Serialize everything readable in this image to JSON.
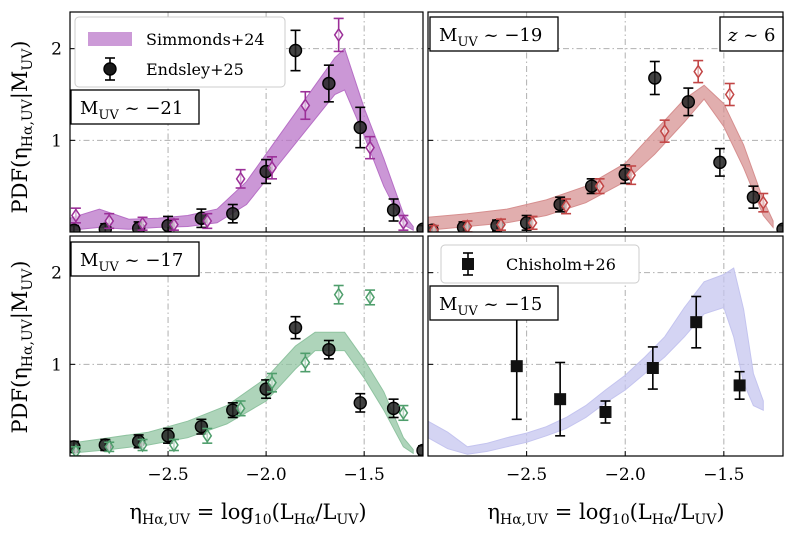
{
  "chart_data": {
    "type": "multi-panel",
    "xlim": [
      -3.0,
      -1.2
    ],
    "ylim": [
      0,
      2.4
    ],
    "xticks": [
      -2.5,
      -2.0,
      -1.5
    ],
    "yticks": [
      1,
      2
    ],
    "xtick_labels": [
      "−2.5",
      "−2.0",
      "−1.5"
    ],
    "ytick_labels": [
      "1",
      "2"
    ],
    "xlabel_main": "η",
    "xlabel_sub": "Hα,UV",
    "xlabel_eq": " = log",
    "xlabel_log_sub": "10",
    "xlabel_open": "(L",
    "xlabel_num_sub": "Hα",
    "xlabel_slash": "/L",
    "xlabel_den_sub": "UV",
    "xlabel_close": ")",
    "ylabel_pre": "PDF(η",
    "ylabel_sub1": "Hα,UV",
    "ylabel_mid": "|M",
    "ylabel_sub2": "UV",
    "ylabel_close": ")",
    "legend_top": [
      {
        "label": "Simmonds+24",
        "kind": "band",
        "color": "#b76fc6"
      },
      {
        "label": "Endsley+25",
        "kind": "circle",
        "color": "#000000"
      }
    ],
    "legend_bottom": [
      {
        "label": "Chisholm+26",
        "kind": "square",
        "color": "#000000"
      }
    ],
    "redshift_label_pre": "z",
    "redshift_label_mid": " ~ ",
    "redshift_label_val": "6",
    "panels": [
      {
        "name": "muv-21",
        "label_pre": "M",
        "label_sub": "UV",
        "label_val": " ~ −21",
        "band_color": "#b76fc6",
        "band": {
          "x": [
            -3.0,
            -2.85,
            -2.7,
            -2.55,
            -2.4,
            -2.25,
            -2.1,
            -1.95,
            -1.8,
            -1.65,
            -1.6,
            -1.5,
            -1.4,
            -1.3,
            -1.25
          ],
          "lower": [
            0.02,
            0.05,
            0.03,
            0.05,
            0.06,
            0.1,
            0.3,
            0.7,
            1.1,
            1.5,
            1.55,
            1.05,
            0.5,
            0.08,
            0.02
          ],
          "upper": [
            0.15,
            0.25,
            0.14,
            0.15,
            0.18,
            0.25,
            0.55,
            1.0,
            1.45,
            1.9,
            2.0,
            1.35,
            0.8,
            0.2,
            0.06
          ]
        },
        "markers": [
          {
            "kind": "circle",
            "color": "#000000",
            "filled": true,
            "x": [
              -2.98,
              -2.82,
              -2.65,
              -2.5,
              -2.33,
              -2.17,
              -2.0,
              -1.85,
              -1.68,
              -1.52,
              -1.35,
              -1.2
            ],
            "y": [
              0.02,
              0.03,
              0.04,
              0.07,
              0.15,
              0.2,
              0.66,
              1.98,
              1.62,
              1.14,
              0.24,
              0.03
            ],
            "err": [
              0.05,
              0.06,
              0.07,
              0.1,
              0.1,
              0.1,
              0.13,
              0.22,
              0.2,
              0.22,
              0.12,
              0.04
            ]
          },
          {
            "kind": "diamond",
            "color": "#9b2f98",
            "filled": false,
            "x": [
              -2.97,
              -2.8,
              -2.63,
              -2.47,
              -2.3,
              -2.13,
              -1.97,
              -1.8,
              -1.63,
              -1.47,
              -1.3
            ],
            "y": [
              0.18,
              0.12,
              0.09,
              0.08,
              0.12,
              0.58,
              0.7,
              1.38,
              2.15,
              0.92,
              0.1
            ],
            "err": [
              0.08,
              0.08,
              0.07,
              0.06,
              0.08,
              0.1,
              0.12,
              0.15,
              0.18,
              0.12,
              0.08
            ]
          }
        ]
      },
      {
        "name": "muv-19",
        "label_pre": "M",
        "label_sub": "UV",
        "label_val": " ~ −19",
        "band_color": "#d68f8f",
        "band": {
          "x": [
            -3.0,
            -2.8,
            -2.6,
            -2.4,
            -2.2,
            -2.0,
            -1.85,
            -1.7,
            -1.6,
            -1.5,
            -1.4,
            -1.3,
            -1.25
          ],
          "lower": [
            0.02,
            0.06,
            0.1,
            0.18,
            0.32,
            0.55,
            0.85,
            1.2,
            1.45,
            1.15,
            0.7,
            0.18,
            0.05
          ],
          "upper": [
            0.16,
            0.2,
            0.25,
            0.35,
            0.5,
            0.75,
            1.1,
            1.45,
            1.6,
            1.4,
            0.95,
            0.35,
            0.12
          ]
        },
        "markers": [
          {
            "kind": "circle",
            "color": "#000000",
            "filled": true,
            "x": [
              -2.98,
              -2.82,
              -2.65,
              -2.5,
              -2.33,
              -2.17,
              -2.0,
              -1.85,
              -1.68,
              -1.52,
              -1.35,
              -1.2
            ],
            "y": [
              0.02,
              0.05,
              0.07,
              0.1,
              0.3,
              0.5,
              0.63,
              1.68,
              1.42,
              0.76,
              0.38,
              0.03
            ],
            "err": [
              0.05,
              0.06,
              0.06,
              0.08,
              0.08,
              0.08,
              0.1,
              0.18,
              0.15,
              0.15,
              0.12,
              0.04
            ]
          },
          {
            "kind": "diamond",
            "color": "#c24646",
            "filled": false,
            "x": [
              -2.97,
              -2.8,
              -2.63,
              -2.47,
              -2.3,
              -2.13,
              -1.97,
              -1.8,
              -1.63,
              -1.47,
              -1.3
            ],
            "y": [
              0.02,
              0.06,
              0.08,
              0.1,
              0.28,
              0.5,
              0.62,
              1.1,
              1.75,
              1.5,
              0.32
            ],
            "err": [
              0.05,
              0.06,
              0.06,
              0.07,
              0.08,
              0.08,
              0.1,
              0.12,
              0.12,
              0.12,
              0.1
            ]
          }
        ]
      },
      {
        "name": "muv-17",
        "label_pre": "M",
        "label_sub": "UV",
        "label_val": " ~ −17",
        "band_color": "#8fc3a0",
        "band": {
          "x": [
            -3.0,
            -2.8,
            -2.6,
            -2.4,
            -2.2,
            -2.0,
            -1.85,
            -1.75,
            -1.6,
            -1.5,
            -1.4,
            -1.3,
            -1.25
          ],
          "lower": [
            0.03,
            0.07,
            0.12,
            0.2,
            0.35,
            0.6,
            0.95,
            1.15,
            1.15,
            0.85,
            0.5,
            0.1,
            0.03
          ],
          "upper": [
            0.14,
            0.2,
            0.26,
            0.38,
            0.55,
            0.85,
            1.2,
            1.35,
            1.35,
            1.05,
            0.7,
            0.2,
            0.07
          ]
        },
        "markers": [
          {
            "kind": "circle",
            "color": "#000000",
            "filled": true,
            "x": [
              -2.98,
              -2.82,
              -2.65,
              -2.5,
              -2.33,
              -2.17,
              -2.0,
              -1.85,
              -1.68,
              -1.52,
              -1.35,
              -1.2
            ],
            "y": [
              0.1,
              0.12,
              0.16,
              0.22,
              0.32,
              0.5,
              0.73,
              1.4,
              1.16,
              0.58,
              0.52,
              0.06
            ],
            "err": [
              0.06,
              0.06,
              0.07,
              0.08,
              0.08,
              0.08,
              0.1,
              0.12,
              0.1,
              0.1,
              0.1,
              0.05
            ]
          },
          {
            "kind": "diamond",
            "color": "#4f9e6c",
            "filled": false,
            "x": [
              -2.97,
              -2.8,
              -2.63,
              -2.47,
              -2.3,
              -2.13,
              -1.97,
              -1.8,
              -1.63,
              -1.47,
              -1.3
            ],
            "y": [
              0.05,
              0.1,
              0.12,
              0.12,
              0.22,
              0.52,
              0.8,
              1.02,
              1.76,
              1.73,
              0.47
            ],
            "err": [
              0.05,
              0.05,
              0.06,
              0.06,
              0.08,
              0.08,
              0.1,
              0.1,
              0.1,
              0.08,
              0.08
            ]
          }
        ]
      },
      {
        "name": "muv-15",
        "label_pre": "M",
        "label_sub": "UV",
        "label_val": " ~ −15",
        "band_color": "#c4c4ef",
        "band": {
          "x": [
            -3.0,
            -2.9,
            -2.8,
            -2.7,
            -2.6,
            -2.5,
            -2.4,
            -2.3,
            -2.2,
            -2.1,
            -2.0,
            -1.9,
            -1.8,
            -1.7,
            -1.6,
            -1.5,
            -1.45,
            -1.4,
            -1.35,
            -1.3
          ],
          "lower": [
            0.2,
            0.08,
            0.02,
            0.05,
            0.1,
            0.15,
            0.22,
            0.3,
            0.42,
            0.58,
            0.72,
            0.9,
            1.08,
            1.3,
            1.55,
            1.62,
            1.3,
            0.8,
            0.55,
            0.5
          ],
          "upper": [
            0.38,
            0.26,
            0.1,
            0.14,
            0.2,
            0.25,
            0.32,
            0.42,
            0.55,
            0.72,
            0.88,
            1.08,
            1.3,
            1.62,
            1.9,
            1.98,
            2.05,
            1.6,
            0.9,
            0.6
          ]
        },
        "markers": [
          {
            "kind": "square",
            "color": "#000000",
            "filled": true,
            "x": [
              -2.55,
              -2.33,
              -2.1,
              -1.86,
              -1.64,
              -1.42
            ],
            "y": [
              0.98,
              0.62,
              0.48,
              0.96,
              1.46,
              0.77
            ],
            "err": [
              0.58,
              0.4,
              0.12,
              0.23,
              0.28,
              0.15
            ]
          }
        ]
      }
    ]
  }
}
